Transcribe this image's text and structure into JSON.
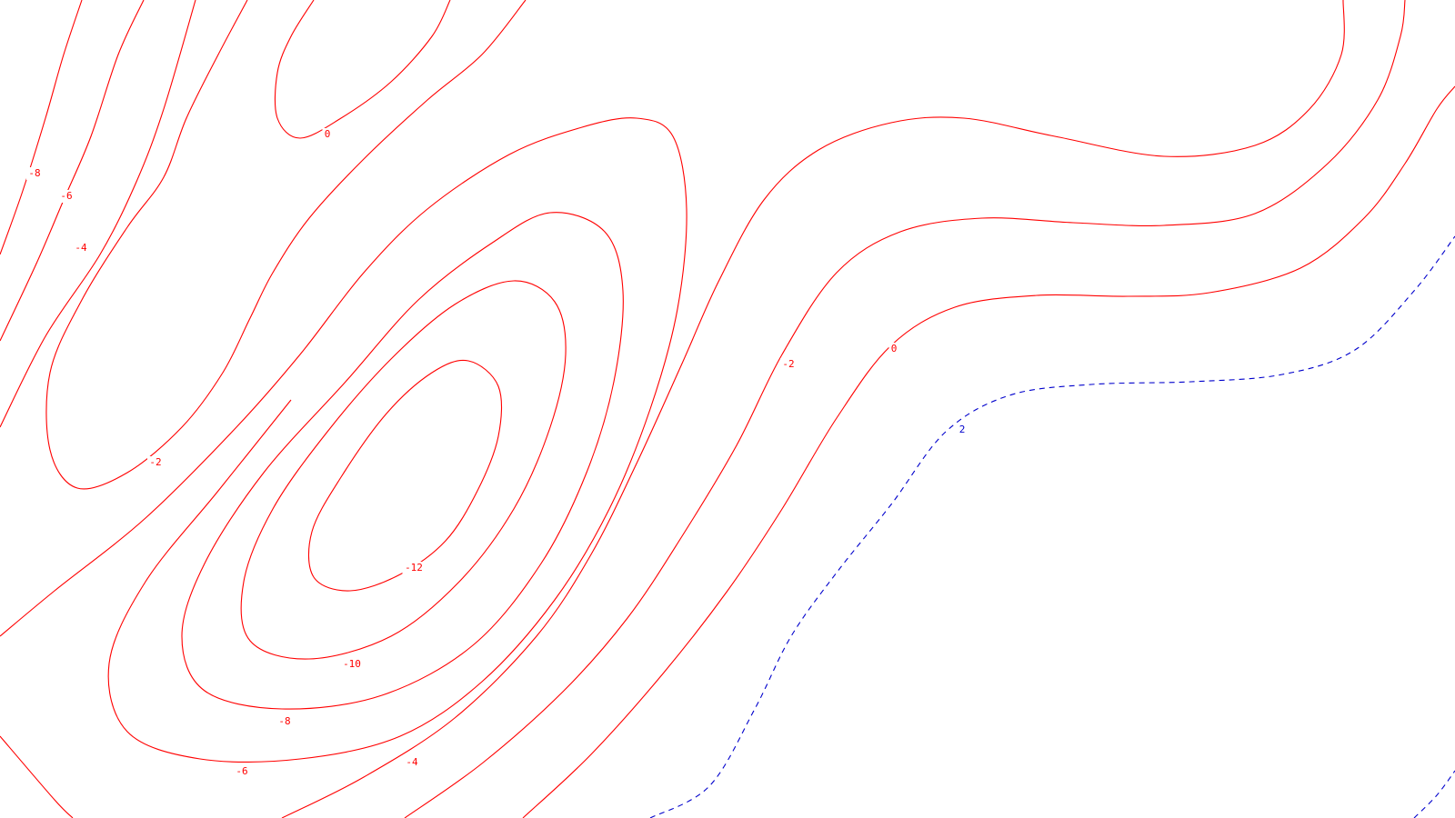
{
  "chart_data": {
    "type": "contour",
    "title": "",
    "xlabel": "",
    "ylabel": "",
    "grid": false,
    "legend": "none",
    "colors": {
      "negative_and_zero": "#ff0000",
      "positive": "#0000cc",
      "background": "#ffffff"
    },
    "line_styles": {
      "negative_and_zero": "solid",
      "positive": "dashed"
    },
    "levels": [
      -12,
      -10,
      -8,
      -6,
      -4,
      -2,
      0,
      2
    ],
    "labels": [
      {
        "level": -12,
        "text": "-12"
      },
      {
        "level": -10,
        "text": "-10"
      },
      {
        "level": -8,
        "text": "-8"
      },
      {
        "level": -8,
        "text": "-8"
      },
      {
        "level": -6,
        "text": "-6"
      },
      {
        "level": -6,
        "text": "-6"
      },
      {
        "level": -4,
        "text": "-4"
      },
      {
        "level": -4,
        "text": "-4"
      },
      {
        "level": -2,
        "text": "-2"
      },
      {
        "level": -2,
        "text": "-2"
      },
      {
        "level": 0,
        "text": "0"
      },
      {
        "level": 0,
        "text": "0"
      },
      {
        "level": 2,
        "text": "2"
      }
    ]
  }
}
